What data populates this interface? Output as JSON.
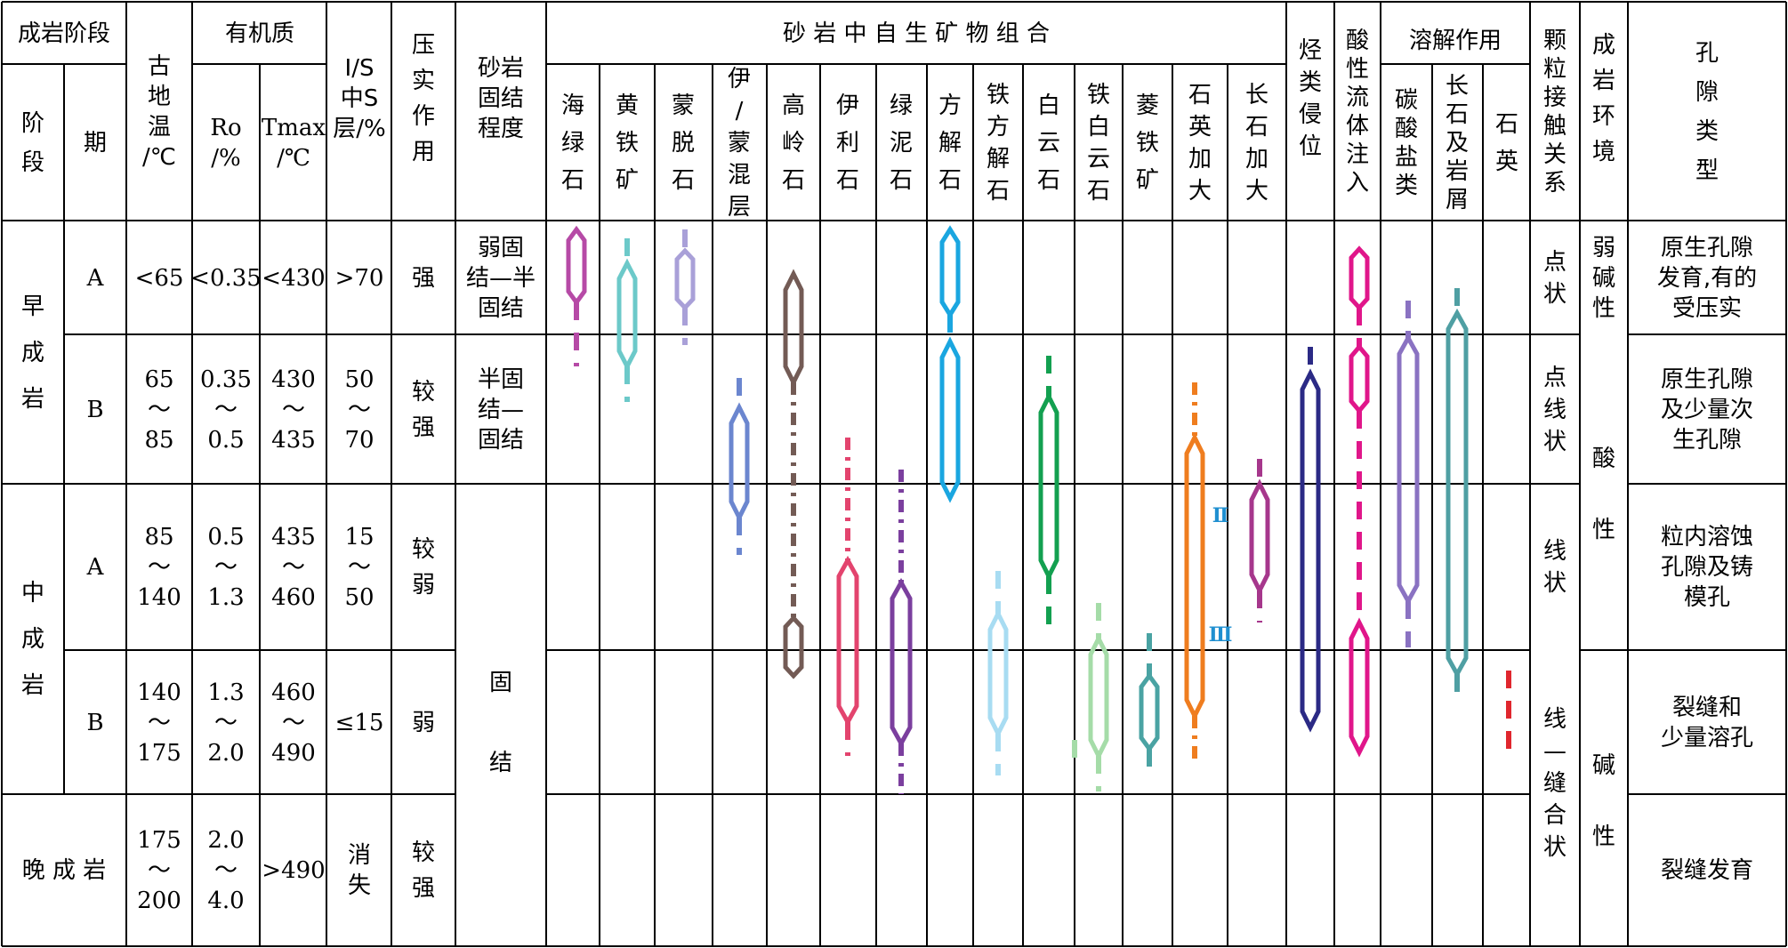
{
  "headers": {
    "stage_group": "成岩阶段",
    "stage": "阶\n段",
    "period": "期",
    "paleotemp": "古\n地\n温\n/℃",
    "organic": "有机质",
    "ro": "Ro\n/%",
    "tmax": "Tmax\n/℃",
    "is": "I/S\n中S\n层/%",
    "compaction": "压\n实\n作\n用",
    "consolidation": "砂岩\n固结\n程度",
    "minerals": "砂 岩 中 自 生 矿 物 组 合",
    "hydrocarbon": "烃\n类\n侵\n位",
    "acid_fluid": "酸\n性\n流\n体\n注\n入",
    "dissolution": "溶解作用",
    "contact": "颗\n粒\n接\n触\n关\n系",
    "environment": "成\n岩\n环\n境",
    "pore": "孔\n隙\n类\n型"
  },
  "mineral_columns": [
    "海\n绿\n石",
    "黄\n铁\n矿",
    "蒙\n脱\n石",
    "伊\n/\n蒙\n混\n层",
    "高\n岭\n石",
    "伊\n利\n石",
    "绿\n泥\n石",
    "方\n解\n石",
    "铁\n方\n解\n石",
    "白\n云\n石",
    "铁\n白\n云\n石",
    "菱\n铁\n矿",
    "石\n英\n加\n大",
    "长\n石\n加\n大"
  ],
  "dissolution_columns": [
    "碳\n酸\n盐\n类",
    "长\n石\n及\n岩\n屑",
    "石\n英"
  ],
  "rows": [
    {
      "stage": "早\n成\n岩",
      "period": "A",
      "temp": "<65",
      "ro": "<0.35",
      "tmax": "<430",
      "is": ">70",
      "compaction": "强",
      "consolidation": "弱固\n结—半\n固结",
      "contact": "点\n状",
      "environment": "弱\n碱\n性",
      "pore": "原生孔隙\n发育,有的\n受压实"
    },
    {
      "stage": "",
      "period": "B",
      "temp": "65\n～\n85",
      "ro": "0.35\n～\n0.5",
      "tmax": "430\n～\n435",
      "is": "50\n～\n70",
      "compaction": "较\n强",
      "consolidation": "半固\n结—\n固结",
      "contact": "点\n线\n状",
      "environment": "",
      "pore": "原生孔隙\n及少量次\n生孔隙"
    },
    {
      "stage": "中\n成\n岩",
      "period": "A",
      "temp": "85\n～\n140",
      "ro": "0.5\n～\n1.3",
      "tmax": "435\n～\n460",
      "is": "15\n～\n50",
      "compaction": "较\n弱",
      "consolidation": "",
      "contact": "线\n状",
      "environment": "",
      "pore": "粒内溶蚀\n孔隙及铸\n模孔"
    },
    {
      "stage": "",
      "period": "B",
      "temp": "140\n～\n175",
      "ro": "1.3\n～\n2.0",
      "tmax": "460\n～\n490",
      "is": "≤15",
      "compaction": "弱",
      "consolidation": "",
      "contact": "",
      "environment": "",
      "pore": "裂缝和\n少量溶孔"
    },
    {
      "stage": "晚 成 岩",
      "period": "",
      "temp": "175\n～\n200",
      "ro": "2.0\n～\n4.0",
      "tmax": ">490",
      "is": "消\n失",
      "compaction": "较\n强",
      "consolidation": "",
      "contact": "",
      "environment": "",
      "pore": "裂缝发育"
    }
  ],
  "merged": {
    "consolidation_solid": "固\n\n\n结",
    "environment_acid": "酸\n\n性",
    "environment_base": "碱\n\n性",
    "contact_suture": "线\n—\n缝\n合\n状"
  },
  "quartz_labels": [
    "Ⅱ",
    "Ⅲ"
  ],
  "colors": {
    "glauconite": "#b64aa6",
    "pyrite": "#6cc9c9",
    "smectite": "#a9a0d8",
    "is_mixed": "#6b86cf",
    "kaolinite": "#735b55",
    "illite": "#e3446e",
    "chlorite": "#7b3f9e",
    "calcite": "#1aa6e0",
    "fe_calcite": "#a8dcf2",
    "dolomite": "#13a050",
    "fe_dolomite": "#a5dca8",
    "siderite": "#4aa3a3",
    "quartz": "#ef7d1f",
    "feldspar": "#a6378c",
    "hydrocarbon": "#2b2a85",
    "acid": "#e0168a",
    "carbonate": "#8a72c2",
    "feld_dis": "#4f9fa3",
    "quartz_dis": "#e0262e"
  }
}
